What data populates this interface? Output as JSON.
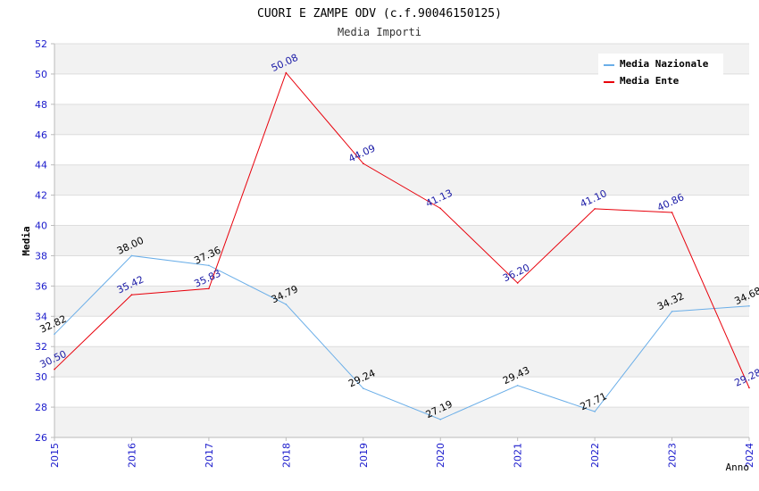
{
  "chart_data": {
    "type": "line",
    "title": "CUORI E ZAMPE ODV (c.f.90046150125)",
    "subtitle": "Media Importi",
    "xlabel": "Anno",
    "ylabel": "Media",
    "ylim": [
      26,
      52
    ],
    "y_ticks": [
      "26",
      "28",
      "30",
      "32",
      "34",
      "36",
      "38",
      "40",
      "42",
      "44",
      "46",
      "48",
      "50",
      "52"
    ],
    "grid": true,
    "legend_position": "top-right",
    "categories": [
      "2015",
      "2016",
      "2017",
      "2018",
      "2019",
      "2020",
      "2021",
      "2022",
      "2023",
      "2024"
    ],
    "series": [
      {
        "name": "Media Nazionale",
        "color": "#6aaee8",
        "label_color": "#000000",
        "values": [
          32.82,
          38.0,
          37.36,
          34.79,
          29.24,
          27.19,
          29.43,
          27.71,
          34.32,
          34.68
        ],
        "labels": [
          "32.82",
          "38.00",
          "37.36",
          "34.79",
          "29.24",
          "27.19",
          "29.43",
          "27.71",
          "34.32",
          "34.68"
        ]
      },
      {
        "name": "Media Ente",
        "color": "#e8000b",
        "label_color": "#1a1aa6",
        "values": [
          30.5,
          35.42,
          35.83,
          50.08,
          44.09,
          41.13,
          36.2,
          41.1,
          40.86,
          29.28
        ],
        "labels": [
          "30.50",
          "35.42",
          "35.83",
          "50.08",
          "44.09",
          "41.13",
          "36.20",
          "41.10",
          "40.86",
          "29.28"
        ]
      }
    ],
    "colors": {
      "tick_label": "#1a1acc",
      "band": "#f2f2f2",
      "grid": "#dddddd",
      "axis": "#bbbbbb"
    }
  }
}
